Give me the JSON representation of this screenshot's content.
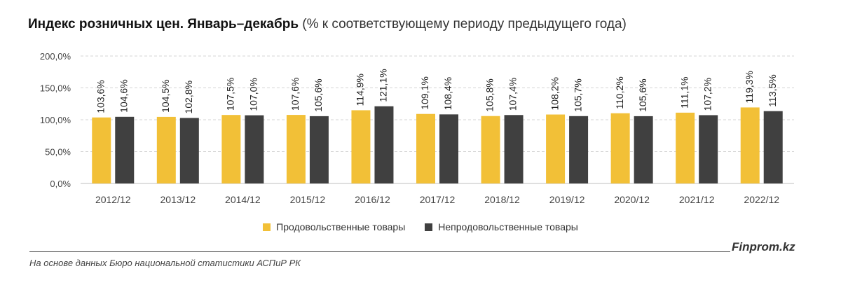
{
  "title": {
    "main": "Индекс розничных цен. Январь–декабрь",
    "sub": "(% к соответствующему периоду предыдущего года)"
  },
  "chart_data": {
    "type": "bar",
    "categories": [
      "2012/12",
      "2013/12",
      "2014/12",
      "2015/12",
      "2016/12",
      "2017/12",
      "2018/12",
      "2019/12",
      "2020/12",
      "2021/12",
      "2022/12"
    ],
    "series": [
      {
        "name": "Продовольственные товары",
        "color": "#F2C037",
        "values": [
          103.6,
          104.5,
          107.5,
          107.6,
          114.9,
          109.1,
          105.8,
          108.2,
          110.2,
          111.1,
          119.3
        ],
        "labels": [
          "103,6%",
          "104,5%",
          "107,5%",
          "107,6%",
          "114,9%",
          "109,1%",
          "105,8%",
          "108,2%",
          "110,2%",
          "111,1%",
          "119,3%"
        ]
      },
      {
        "name": "Непродовольственные товары",
        "color": "#404040",
        "values": [
          104.6,
          102.8,
          107.0,
          105.6,
          121.1,
          108.4,
          107.4,
          105.7,
          105.6,
          107.2,
          113.5
        ],
        "labels": [
          "104,6%",
          "102,8%",
          "107,0%",
          "105,6%",
          "121,1%",
          "108,4%",
          "107,4%",
          "105,7%",
          "105,6%",
          "107,2%",
          "113,5%"
        ]
      }
    ],
    "ylim": [
      0,
      200
    ],
    "yticks": [
      0,
      50,
      100,
      150,
      200
    ],
    "ytick_labels": [
      "0,0%",
      "50,0%",
      "100,0%",
      "150,0%",
      "200,0%"
    ],
    "grid": true,
    "legend_position": "bottom"
  },
  "footer": {
    "brand": "Finprom.kz",
    "source": "На основе данных Бюро национальной статистики АСПиР РК"
  }
}
